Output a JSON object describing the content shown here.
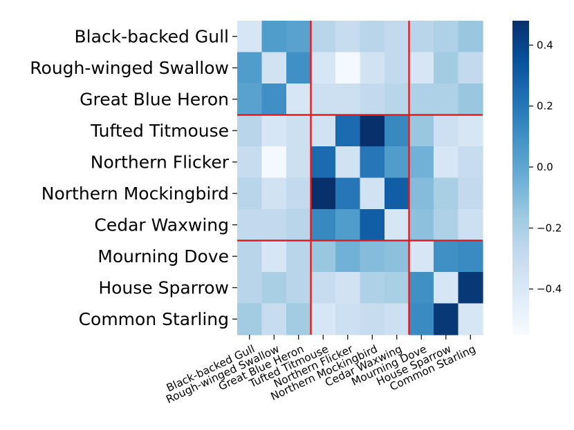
{
  "chart_data": {
    "type": "heatmap",
    "title": "",
    "xlabel": "",
    "ylabel": "",
    "row_labels": [
      "Black-backed Gull",
      "Rough-winged Swallow",
      "Great Blue Heron",
      "Tufted Titmouse",
      "Northern Flicker",
      "Northern Mockingbird",
      "Cedar Waxwing",
      "Mourning Dove",
      "House Sparrow",
      "Common Starling"
    ],
    "col_labels": [
      "Black-backed Gull",
      "Rough-winged Swallow",
      "Great Blue Heron",
      "Tufted Titmouse",
      "Northern Flicker",
      "Northern Mockingbird",
      "Cedar Waxwing",
      "Mourning Dove",
      "House Sparrow",
      "Common Starling"
    ],
    "values": [
      [
        -0.38,
        0.05,
        0.02,
        -0.25,
        -0.3,
        -0.25,
        -0.28,
        -0.25,
        -0.22,
        -0.15
      ],
      [
        0.05,
        -0.35,
        0.1,
        -0.38,
        -0.53,
        -0.35,
        -0.28,
        -0.38,
        -0.18,
        -0.28
      ],
      [
        0.02,
        0.1,
        -0.38,
        -0.33,
        -0.33,
        -0.28,
        -0.25,
        -0.22,
        -0.22,
        -0.15
      ],
      [
        -0.25,
        -0.38,
        -0.33,
        -0.35,
        0.25,
        0.48,
        0.13,
        -0.15,
        -0.33,
        -0.38
      ],
      [
        -0.3,
        -0.53,
        -0.33,
        0.25,
        -0.35,
        0.2,
        0.05,
        -0.05,
        -0.38,
        -0.3
      ],
      [
        -0.25,
        -0.35,
        -0.28,
        0.48,
        0.2,
        -0.35,
        0.3,
        -0.1,
        -0.2,
        -0.28
      ],
      [
        -0.28,
        -0.28,
        -0.25,
        0.13,
        0.05,
        0.3,
        -0.38,
        -0.12,
        -0.22,
        -0.33
      ],
      [
        -0.25,
        -0.38,
        -0.25,
        -0.15,
        -0.05,
        -0.1,
        -0.12,
        -0.38,
        0.1,
        0.12
      ],
      [
        -0.25,
        -0.2,
        -0.25,
        -0.3,
        -0.35,
        -0.22,
        -0.2,
        0.1,
        -0.38,
        0.45
      ],
      [
        -0.18,
        -0.3,
        -0.18,
        -0.38,
        -0.33,
        -0.3,
        -0.33,
        0.12,
        0.45,
        -0.38
      ]
    ],
    "vmin": -0.55,
    "vmax": 0.48,
    "colormap": "Blues",
    "colorbar_ticks": [
      0.4,
      0.2,
      0.0,
      -0.2,
      -0.4
    ],
    "colorbar_tick_labels": [
      "0.4",
      "0.2",
      "0.0",
      "−0.2",
      "−0.4"
    ],
    "group_boundaries_after": [
      3,
      7
    ],
    "group_line_color": "#e41a1c",
    "grid": false,
    "legend": "colorbar-right"
  }
}
